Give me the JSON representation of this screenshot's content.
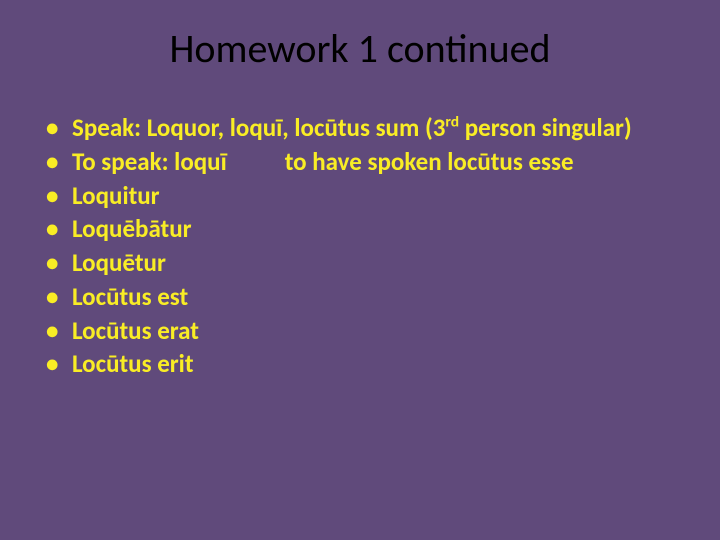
{
  "slide": {
    "title": "Homework 1 continued",
    "background_color": "#604a7b",
    "title_color": "#000000",
    "text_color": "#f9ed25",
    "title_fontsize": 40,
    "body_fontsize": 25,
    "bullets": [
      {
        "prefix": "Speak: Loquor, loquī,  locūtus sum   (3",
        "sup": "rd",
        "suffix": " person singular)"
      },
      {
        "left": "To speak: loquī",
        "right": "to have spoken locūtus esse"
      },
      {
        "text": "Loquitur"
      },
      {
        "text": "Loquēbātur"
      },
      {
        "text": "Loquētur"
      },
      {
        "text": "Locūtus est"
      },
      {
        "text": "Locūtus erat"
      },
      {
        "text": "Locūtus erit"
      }
    ],
    "bullet_glyph": "•"
  }
}
